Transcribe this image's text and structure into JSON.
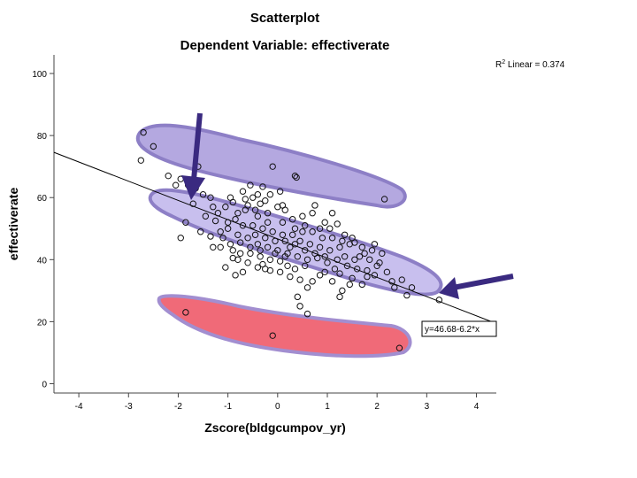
{
  "chart_data": {
    "type": "scatter",
    "title": "Scatterplot",
    "subtitle": "Dependent Variable: effectiverate",
    "xlabel": "Zscore(bldgcumpov_yr)",
    "ylabel": "effectiverate",
    "xlim": [
      -4.5,
      4.4
    ],
    "ylim": [
      -3,
      106
    ],
    "xticks": [
      -4,
      -3,
      -2,
      -1,
      0,
      1,
      2,
      3,
      4
    ],
    "yticks": [
      0,
      20,
      40,
      60,
      80,
      100
    ],
    "r2_label": "R² Linear = 0.374",
    "fit": {
      "intercept": 46.68,
      "slope": -6.2,
      "equation": "y=46.68-6.2*x"
    },
    "annotations": [
      {
        "kind": "highlight",
        "color": "#b4a8e0",
        "label": "upper cluster",
        "points": [
          [
            -2.7,
            81
          ],
          [
            -2.5,
            76.5
          ],
          [
            -1.6,
            70
          ],
          [
            -0.1,
            70
          ],
          [
            0.35,
            67
          ],
          [
            0.38,
            66.5
          ],
          [
            2.15,
            59.5
          ]
        ]
      },
      {
        "kind": "highlight",
        "color": "#c8bfee",
        "label": "main band",
        "points": [
          [
            1.95,
            35
          ],
          [
            1.7,
            32
          ],
          [
            2.35,
            31
          ],
          [
            3.25,
            27
          ]
        ]
      },
      {
        "kind": "highlight",
        "color": "#f06070",
        "label": "low cluster",
        "points": [
          [
            -1.85,
            23
          ],
          [
            -0.1,
            15.5
          ],
          [
            2.45,
            11.5
          ]
        ]
      },
      {
        "kind": "arrow",
        "color": "#3a2a80",
        "label": "arrow-1"
      },
      {
        "kind": "arrow",
        "color": "#3a2a80",
        "label": "arrow-2"
      }
    ],
    "series": [
      {
        "name": "effectiverate",
        "points": [
          [
            -2.7,
            81
          ],
          [
            -2.5,
            76.5
          ],
          [
            -2.75,
            72
          ],
          [
            -1.6,
            70
          ],
          [
            -0.1,
            70
          ],
          [
            0.35,
            67
          ],
          [
            0.38,
            66.5
          ],
          [
            2.15,
            59.5
          ],
          [
            -1.85,
            23
          ],
          [
            -0.1,
            15.5
          ],
          [
            2.45,
            11.5
          ],
          [
            1.95,
            35
          ],
          [
            1.7,
            32
          ],
          [
            2.35,
            31
          ],
          [
            3.25,
            27
          ],
          [
            2.6,
            28.5
          ],
          [
            1.25,
            28
          ],
          [
            0.6,
            22.5
          ],
          [
            0.4,
            28
          ],
          [
            0.45,
            25
          ],
          [
            -2.2,
            67
          ],
          [
            -1.95,
            66
          ],
          [
            -1.8,
            64
          ],
          [
            -1.65,
            63
          ],
          [
            -1.5,
            61
          ],
          [
            -1.35,
            60
          ],
          [
            -2.05,
            64
          ],
          [
            -1.7,
            58
          ],
          [
            -1.3,
            57
          ],
          [
            -1.85,
            52
          ],
          [
            -1.95,
            47
          ],
          [
            -1.55,
            49
          ],
          [
            -1.3,
            44
          ],
          [
            -1.1,
            47
          ],
          [
            -0.9,
            43
          ],
          [
            -0.8,
            40
          ],
          [
            -0.85,
            35
          ],
          [
            -1.05,
            37.5
          ],
          [
            -0.7,
            36
          ],
          [
            -1.15,
            44
          ],
          [
            -0.25,
            37
          ],
          [
            -0.15,
            36.5
          ],
          [
            0.05,
            36
          ],
          [
            0.2,
            38
          ],
          [
            0.35,
            37
          ],
          [
            -0.3,
            38.5
          ],
          [
            0.55,
            38
          ],
          [
            0.7,
            33
          ],
          [
            0.6,
            31
          ],
          [
            1.1,
            33
          ],
          [
            1.3,
            30
          ],
          [
            1.5,
            34
          ],
          [
            1.8,
            34.5
          ],
          [
            2.3,
            33
          ],
          [
            2.0,
            38
          ],
          [
            2.2,
            36
          ],
          [
            -1.2,
            55
          ],
          [
            -1.05,
            57
          ],
          [
            -0.9,
            58.5
          ],
          [
            -0.65,
            56
          ],
          [
            -0.5,
            60
          ],
          [
            -0.35,
            58
          ],
          [
            -0.2,
            55
          ],
          [
            0.0,
            57
          ],
          [
            0.15,
            56
          ],
          [
            0.3,
            53
          ],
          [
            0.5,
            54
          ],
          [
            0.7,
            55
          ],
          [
            0.95,
            52
          ],
          [
            1.1,
            55
          ],
          [
            1.2,
            51.5
          ],
          [
            0.75,
            57.5
          ],
          [
            -1.0,
            50
          ],
          [
            -0.8,
            48
          ],
          [
            -0.6,
            47
          ],
          [
            -0.4,
            45
          ],
          [
            -0.2,
            44
          ],
          [
            0.0,
            43
          ],
          [
            0.2,
            42
          ],
          [
            0.4,
            41
          ],
          [
            0.6,
            40
          ],
          [
            0.8,
            40.5
          ],
          [
            1.0,
            39
          ],
          [
            1.2,
            40
          ],
          [
            1.4,
            38
          ],
          [
            1.6,
            37
          ],
          [
            1.8,
            36.5
          ],
          [
            2.5,
            33.5
          ],
          [
            2.7,
            31
          ],
          [
            -0.95,
            45
          ],
          [
            -0.75,
            45.5
          ],
          [
            -0.55,
            42
          ],
          [
            -0.35,
            41
          ],
          [
            -0.15,
            40
          ],
          [
            0.05,
            39.5
          ],
          [
            0.25,
            44
          ],
          [
            0.45,
            46
          ],
          [
            0.65,
            45
          ],
          [
            0.85,
            44
          ],
          [
            1.05,
            43
          ],
          [
            1.25,
            44
          ],
          [
            1.45,
            45
          ],
          [
            1.65,
            41
          ],
          [
            1.85,
            40
          ],
          [
            2.05,
            39
          ],
          [
            -0.85,
            53
          ],
          [
            -0.7,
            51
          ],
          [
            -0.5,
            51
          ],
          [
            -0.3,
            50
          ],
          [
            -0.1,
            49
          ],
          [
            0.1,
            48
          ],
          [
            0.3,
            48
          ],
          [
            0.5,
            49
          ],
          [
            0.7,
            49
          ],
          [
            0.9,
            47
          ],
          [
            1.1,
            47
          ],
          [
            1.3,
            46
          ],
          [
            1.5,
            47
          ],
          [
            1.7,
            44
          ],
          [
            1.9,
            43
          ],
          [
            2.1,
            42
          ],
          [
            -0.6,
            57.5
          ],
          [
            -0.4,
            54
          ],
          [
            -0.2,
            52
          ],
          [
            0.1,
            52
          ],
          [
            0.35,
            50
          ],
          [
            0.55,
            51
          ],
          [
            0.85,
            50
          ],
          [
            1.05,
            50
          ],
          [
            1.35,
            48
          ],
          [
            1.55,
            45.5
          ],
          [
            1.75,
            42
          ],
          [
            1.95,
            45
          ],
          [
            -1.0,
            52
          ],
          [
            -0.8,
            55
          ],
          [
            -0.45,
            56
          ],
          [
            -0.25,
            59
          ],
          [
            0.1,
            57.5
          ],
          [
            -0.65,
            59.5
          ],
          [
            -0.95,
            60
          ],
          [
            -0.05,
            46
          ],
          [
            0.15,
            46
          ],
          [
            0.35,
            45
          ],
          [
            0.55,
            43
          ],
          [
            0.75,
            42
          ],
          [
            0.95,
            41
          ],
          [
            1.15,
            37
          ],
          [
            1.35,
            41
          ],
          [
            1.55,
            40
          ],
          [
            -0.45,
            48
          ],
          [
            -0.25,
            47
          ],
          [
            -0.05,
            42
          ],
          [
            0.15,
            41
          ],
          [
            -0.55,
            44
          ],
          [
            -0.35,
            43
          ],
          [
            -0.75,
            42
          ],
          [
            -0.9,
            40.5
          ],
          [
            -0.6,
            39
          ],
          [
            -0.4,
            37.5
          ],
          [
            0.95,
            36
          ],
          [
            1.25,
            35.5
          ],
          [
            1.45,
            32
          ],
          [
            0.85,
            35
          ],
          [
            0.25,
            34.5
          ],
          [
            0.45,
            33.5
          ],
          [
            -1.45,
            54
          ],
          [
            -1.25,
            52.5
          ],
          [
            -1.15,
            49
          ],
          [
            -1.35,
            47.5
          ],
          [
            -0.15,
            61
          ],
          [
            -0.4,
            61
          ],
          [
            0.05,
            62
          ],
          [
            -0.7,
            62
          ],
          [
            -0.3,
            63.5
          ],
          [
            -0.55,
            64
          ]
        ]
      }
    ]
  }
}
